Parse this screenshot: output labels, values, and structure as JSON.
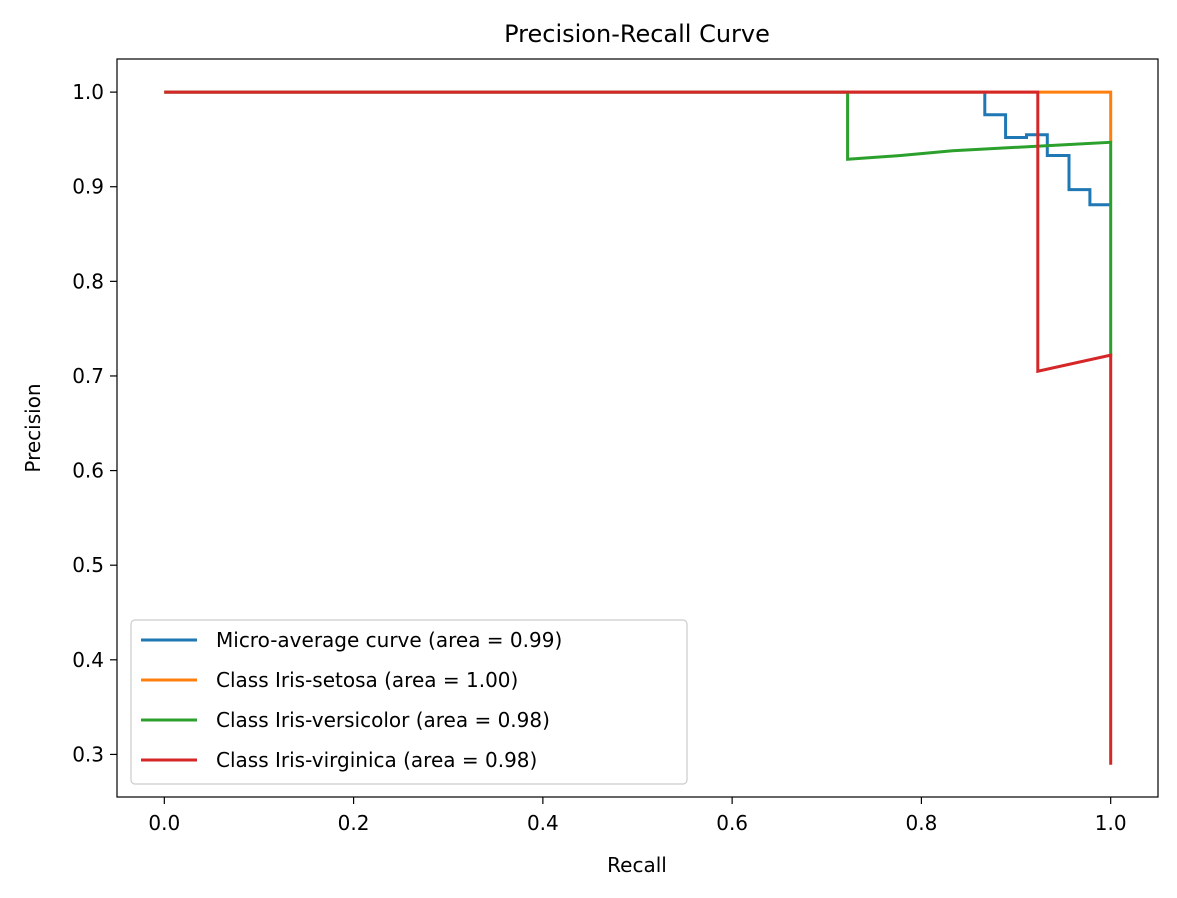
{
  "chart_data": {
    "type": "line",
    "title": "Precision-Recall Curve",
    "xlabel": "Recall",
    "ylabel": "Precision",
    "xlim": [
      -0.05,
      1.05
    ],
    "ylim": [
      0.255,
      1.035
    ],
    "xticks": [
      "0.0",
      "0.2",
      "0.4",
      "0.6",
      "0.8",
      "1.0"
    ],
    "yticks": [
      "0.3",
      "0.4",
      "0.5",
      "0.6",
      "0.7",
      "0.8",
      "0.9",
      "1.0"
    ],
    "grid": false,
    "legend_position": "lower-left",
    "series": [
      {
        "name": "Micro-average curve (area = 0.99)",
        "color": "#1f77b4",
        "x": [
          0.0,
          0.867,
          0.867,
          0.889,
          0.889,
          0.911,
          0.911,
          0.933,
          0.933,
          0.956,
          0.956,
          0.978,
          0.978,
          1.0
        ],
        "y": [
          1.0,
          1.0,
          0.976,
          0.976,
          0.952,
          0.952,
          0.955,
          0.955,
          0.933,
          0.933,
          0.897,
          0.897,
          0.881,
          0.881
        ]
      },
      {
        "name": "Class Iris-setosa (area = 1.00)",
        "color": "#ff7f0e",
        "x": [
          0.0,
          1.0,
          1.0
        ],
        "y": [
          1.0,
          1.0,
          0.947
        ]
      },
      {
        "name": "Class Iris-versicolor (area = 0.98)",
        "color": "#2ca02c",
        "x": [
          0.0,
          0.722,
          0.722,
          0.778,
          0.778,
          0.833,
          0.833,
          0.889,
          0.889,
          0.944,
          0.944,
          1.0,
          1.0
        ],
        "y": [
          1.0,
          1.0,
          0.929,
          0.933,
          0.933,
          0.938,
          0.938,
          0.941,
          0.941,
          0.944,
          0.944,
          0.947,
          0.72
        ]
      },
      {
        "name": "Class Iris-virginica (area = 0.98)",
        "color": "#d62728",
        "x": [
          0.0,
          0.923,
          0.923,
          1.0,
          1.0
        ],
        "y": [
          1.0,
          1.0,
          0.705,
          0.722,
          0.289
        ]
      }
    ]
  }
}
